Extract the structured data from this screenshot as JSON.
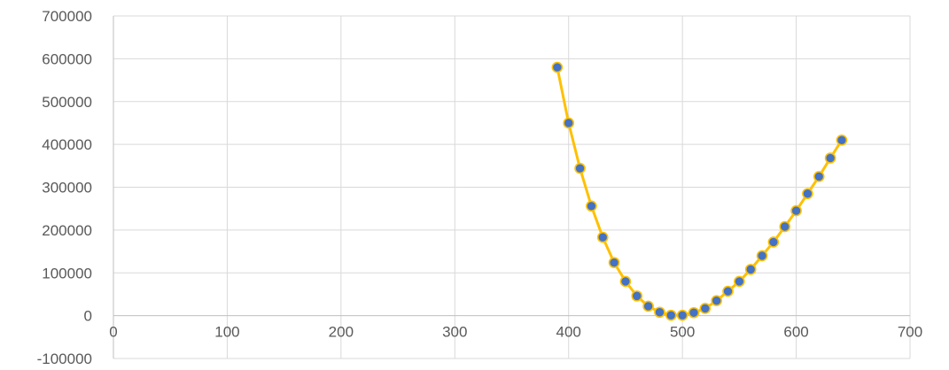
{
  "chart_data": {
    "type": "scatter",
    "title": "",
    "xlabel": "",
    "ylabel": "",
    "xlim": [
      0,
      700
    ],
    "ylim": [
      -100000,
      700000
    ],
    "x_ticks": [
      0,
      100,
      200,
      300,
      400,
      500,
      600,
      700
    ],
    "y_ticks": [
      -100000,
      0,
      100000,
      200000,
      300000,
      400000,
      500000,
      600000,
      700000
    ],
    "grid": true,
    "legend": "none",
    "colors": {
      "line": "#FFC000",
      "marker_fill": "#4472C4",
      "marker_edge": "#FFC000",
      "grid": "#D9D9D9"
    },
    "series": [
      {
        "x": [
          390,
          400,
          410,
          420,
          430,
          440,
          450,
          460,
          470,
          480,
          490,
          500,
          510,
          520,
          530,
          540,
          550,
          560,
          570,
          580,
          590,
          600,
          610,
          620,
          630,
          640
        ],
        "y": [
          580000,
          450000,
          344000,
          256000,
          183000,
          124000,
          80000,
          46000,
          22000,
          8000,
          1000,
          1000,
          7000,
          17000,
          35000,
          57000,
          80000,
          108000,
          140000,
          172000,
          208000,
          245000,
          285000,
          325000,
          368000,
          410000
        ]
      }
    ]
  }
}
